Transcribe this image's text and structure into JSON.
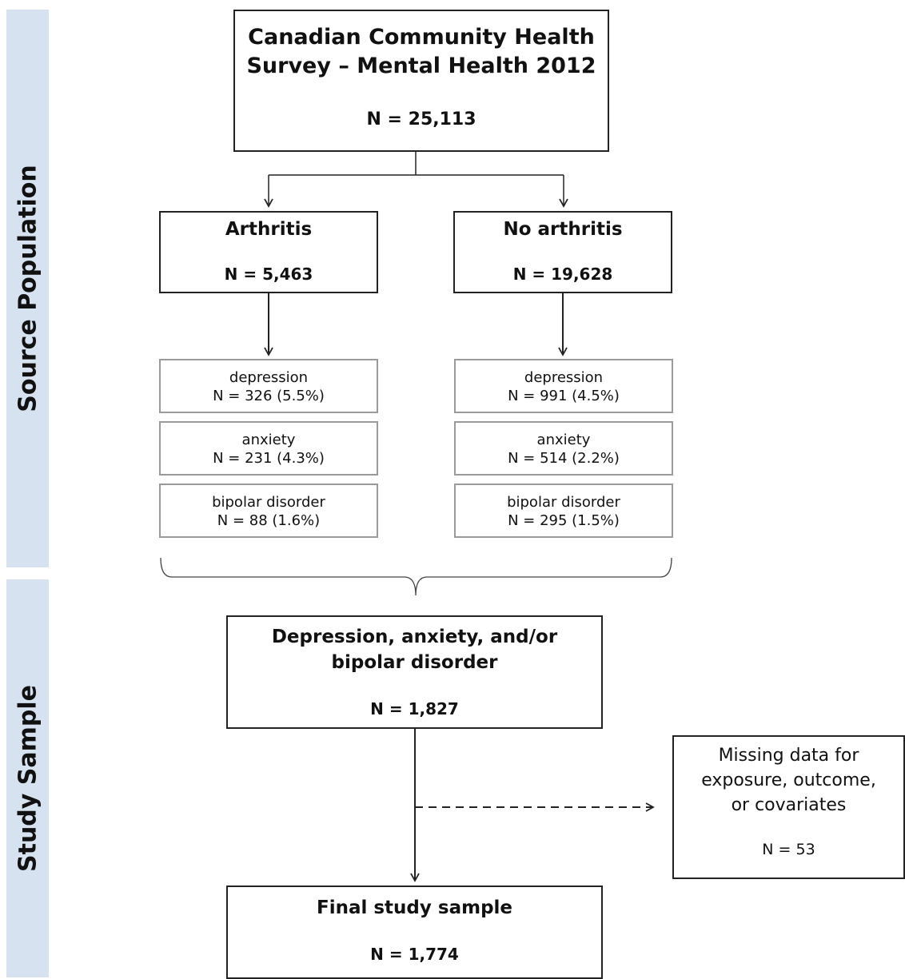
{
  "sections": {
    "source_population": "Source Population",
    "study_sample": "Study Sample"
  },
  "ccsh": {
    "title_line1": "Canadian Community Health",
    "title_line2": "Survey – Mental Health 2012",
    "n": "N = 25,113"
  },
  "arthritis": {
    "title": "Arthritis",
    "n": "N = 5,463",
    "depression": {
      "label": "depression",
      "n": "N = 326 (5.5%)"
    },
    "anxiety": {
      "label": "anxiety",
      "n": "N = 231 (4.3%)"
    },
    "bipolar": {
      "label": "bipolar disorder",
      "n": "N = 88 (1.6%)"
    }
  },
  "no_arthritis": {
    "title": "No arthritis",
    "n": "N = 19,628",
    "depression": {
      "label": "depression",
      "n": "N = 991 (4.5%)"
    },
    "anxiety": {
      "label": "anxiety",
      "n": "N = 514 (2.2%)"
    },
    "bipolar": {
      "label": "bipolar disorder",
      "n": "N = 295 (1.5%)"
    }
  },
  "combined": {
    "title_line1": "Depression, anxiety, and/or",
    "title_line2": "bipolar disorder",
    "n": "N = 1,827"
  },
  "missing": {
    "line1": "Missing data for",
    "line2": "exposure, outcome,",
    "line3": "or covariates",
    "n": "N = 53"
  },
  "final": {
    "title": "Final study sample",
    "n": "N = 1,774"
  },
  "colors": {
    "band": "#d6e2f0",
    "border": "#222222",
    "sub_border": "#9a9a9a"
  }
}
